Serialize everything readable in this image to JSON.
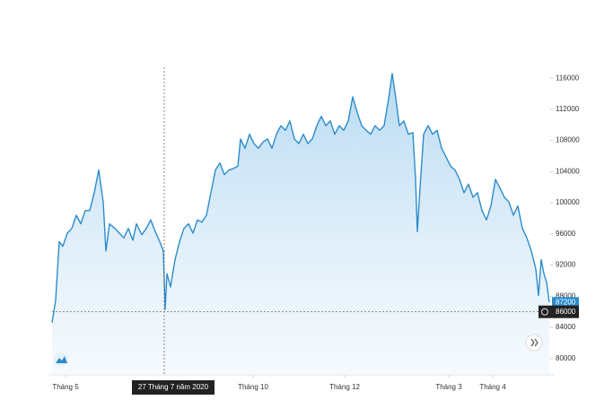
{
  "chart_data": {
    "type": "area",
    "x": [
      0,
      0.8,
      1.6,
      2.4,
      3.4,
      4.4,
      5.4,
      6.4,
      7.4,
      8.4,
      9.4,
      10.4,
      11.4,
      12,
      12.8,
      14,
      15,
      16,
      17,
      18,
      18.8,
      20,
      21,
      22,
      23,
      24,
      24.8,
      25.2,
      25.6,
      26.4,
      27.4,
      28.4,
      29.4,
      30.4,
      31.4,
      32.4,
      33.4,
      34.4,
      35.4,
      36.4,
      37.4,
      38.4,
      39.4,
      40.4,
      41.4,
      42,
      43,
      44,
      45,
      46,
      47,
      48,
      49,
      50,
      51,
      52,
      53,
      54,
      55,
      56,
      57,
      58,
      59,
      60,
      61,
      62,
      63,
      64,
      65,
      66,
      67,
      68,
      69,
      70,
      71,
      72,
      73,
      74,
      75,
      75.8,
      76.6,
      77.4,
      78.4,
      79.4,
      80.4,
      81,
      81.4,
      82,
      82.8,
      83.8,
      84.8,
      85.8,
      86.8,
      87.8,
      88.8,
      89.8,
      90.8,
      91.8,
      92.8,
      93.8,
      94.8,
      95.8,
      96.8,
      97.8,
      98.8,
      99.8,
      100.8,
      101.8,
      102.8,
      103.8,
      104.8,
      105.8,
      106.8,
      107.8,
      108.4,
      109,
      109.6,
      110.2,
      110.8
    ],
    "values": [
      84600,
      87500,
      95000,
      94400,
      96100,
      96700,
      98400,
      97300,
      99000,
      99000,
      101300,
      104200,
      100100,
      93800,
      97300,
      96700,
      96100,
      95500,
      96700,
      95200,
      97300,
      95900,
      96700,
      97800,
      96300,
      95000,
      93800,
      86300,
      90900,
      89200,
      92700,
      95000,
      96700,
      97300,
      96100,
      97800,
      97500,
      98400,
      101300,
      104200,
      105100,
      103600,
      104200,
      104400,
      104700,
      108200,
      107000,
      108800,
      107600,
      107000,
      107800,
      108200,
      107000,
      108800,
      109900,
      109300,
      110500,
      108200,
      107600,
      108800,
      107600,
      108200,
      109900,
      111100,
      109900,
      110500,
      108800,
      109900,
      109300,
      110500,
      113600,
      111600,
      109900,
      109300,
      108800,
      109900,
      109300,
      109900,
      113400,
      116600,
      113400,
      109900,
      110500,
      108800,
      109000,
      103000,
      96300,
      101900,
      108800,
      109900,
      108800,
      109300,
      107000,
      105900,
      104700,
      104200,
      103000,
      101300,
      102400,
      100700,
      101300,
      99000,
      97800,
      99600,
      103000,
      101900,
      100700,
      100100,
      98400,
      99600,
      96700,
      95500,
      93800,
      91500,
      88100,
      92700,
      90900,
      89800,
      87200
    ],
    "color": "#2b8ccc",
    "xlim": [
      0,
      111
    ],
    "xticks": [
      {
        "value": 3,
        "label": "Tháng 5"
      },
      {
        "value": 44.8,
        "label": "Tháng 10"
      },
      {
        "value": 65.2,
        "label": "Tháng 12"
      },
      {
        "value": 88.4,
        "label": "Tháng 3"
      },
      {
        "value": 98.2,
        "label": "Tháng 4"
      }
    ],
    "ylim": [
      77900,
      117400
    ],
    "yticks": [
      80000,
      84000,
      88000,
      92000,
      96000,
      100000,
      104000,
      108000,
      112000,
      116000
    ],
    "last_price": 87200,
    "crosshair": {
      "x": 25,
      "x_label": "27 Tháng 7 năm 2020",
      "y": 86000
    }
  }
}
